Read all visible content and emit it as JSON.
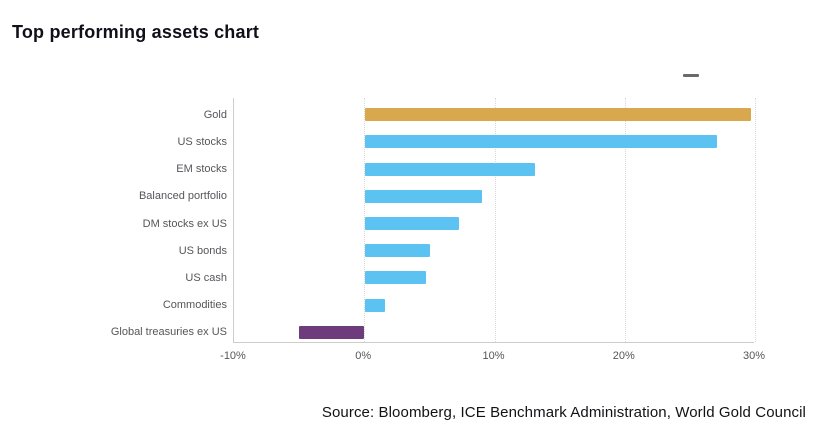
{
  "header": {
    "title": "Top performing assets chart"
  },
  "legend": {
    "marker": "dash"
  },
  "chart_data": {
    "type": "bar",
    "orientation": "horizontal",
    "title": "Top performing assets chart",
    "categories": [
      "Gold",
      "US stocks",
      "EM stocks",
      "Balanced portfolio",
      "DM stocks ex US",
      "US bonds",
      "US cash",
      "Commodities",
      "Global treasuries ex US"
    ],
    "values": [
      29.6,
      27,
      13,
      9,
      7.2,
      5,
      4.7,
      1.5,
      -5
    ],
    "unit": "%",
    "xlabel": "",
    "ylabel": "",
    "xlim": [
      -10,
      30
    ],
    "x_tick_values": [
      -10,
      0,
      10,
      20,
      30
    ],
    "x_tick_labels": [
      "-10%",
      "0%",
      "10%",
      "20%",
      "30%"
    ],
    "grid": "vertical-dotted",
    "legend_position": "top-right",
    "bar_colors": [
      "#d8a74e",
      "#5bc2f2",
      "#5bc2f2",
      "#5bc2f2",
      "#5bc2f2",
      "#5bc2f2",
      "#5bc2f2",
      "#5bc2f2",
      "#6e3c7c"
    ],
    "accent_colors": {
      "gold": "#d8a74e",
      "blue": "#5bc2f2",
      "purple": "#6e3c7c"
    }
  },
  "footer": {
    "source": "Source: Bloomberg, ICE Benchmark Administration, World Gold Council"
  }
}
